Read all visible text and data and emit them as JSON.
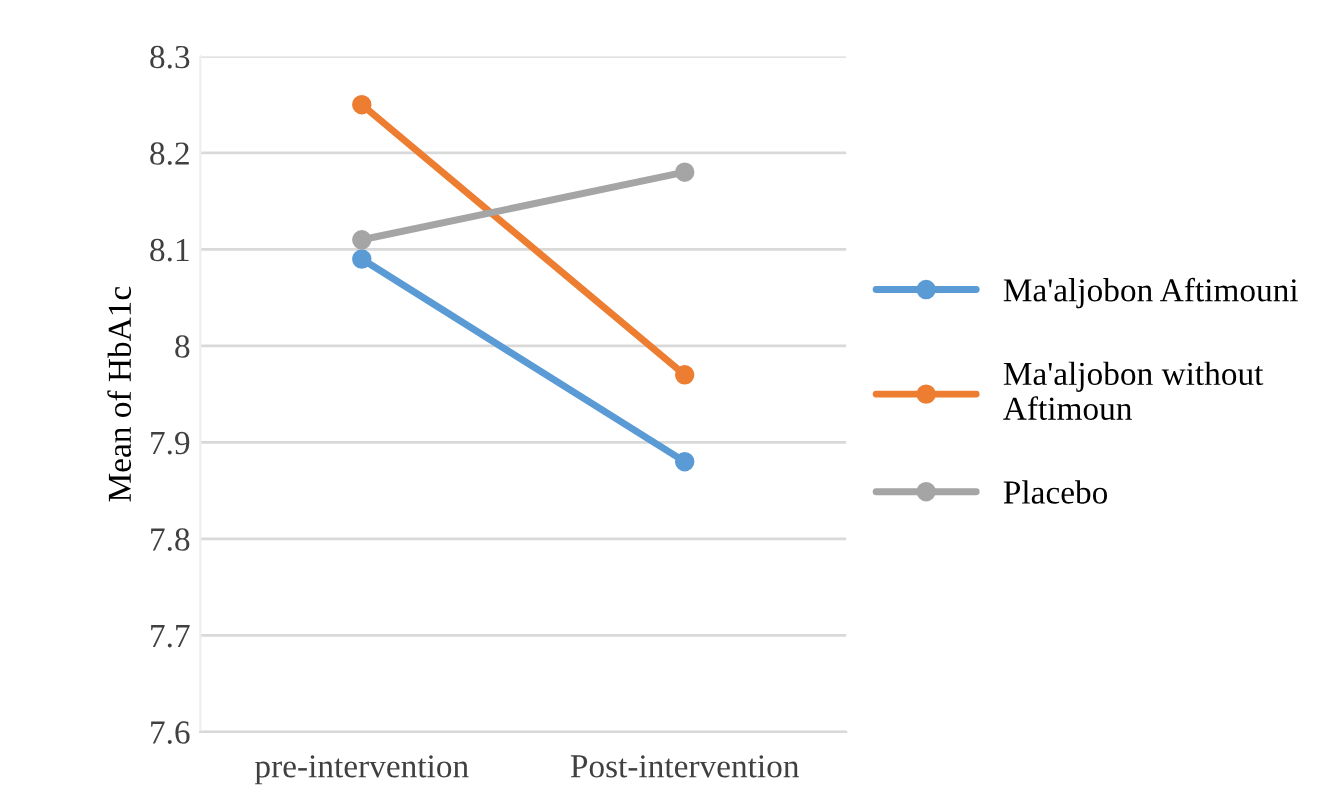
{
  "chart_data": {
    "type": "line",
    "ylabel": "Mean of HbA1c",
    "categories": [
      "pre-intervention",
      "Post-intervention"
    ],
    "series": [
      {
        "name": "Ma'aljobon Aftimouni",
        "color": "#5b9bd5",
        "values": [
          8.09,
          7.88
        ]
      },
      {
        "name": "Ma'aljobon without\nAftimoun",
        "color": "#ed7d31",
        "values": [
          8.25,
          7.97
        ]
      },
      {
        "name": "Placebo",
        "color": "#a5a5a5",
        "values": [
          8.11,
          8.18
        ]
      }
    ],
    "ylim": [
      7.6,
      8.3
    ],
    "yticks": [
      7.6,
      7.7,
      7.8,
      7.9,
      8,
      8.1,
      8.2,
      8.3
    ],
    "grid": "y",
    "legend": "right",
    "marker": "circle",
    "line_style": "solid"
  }
}
